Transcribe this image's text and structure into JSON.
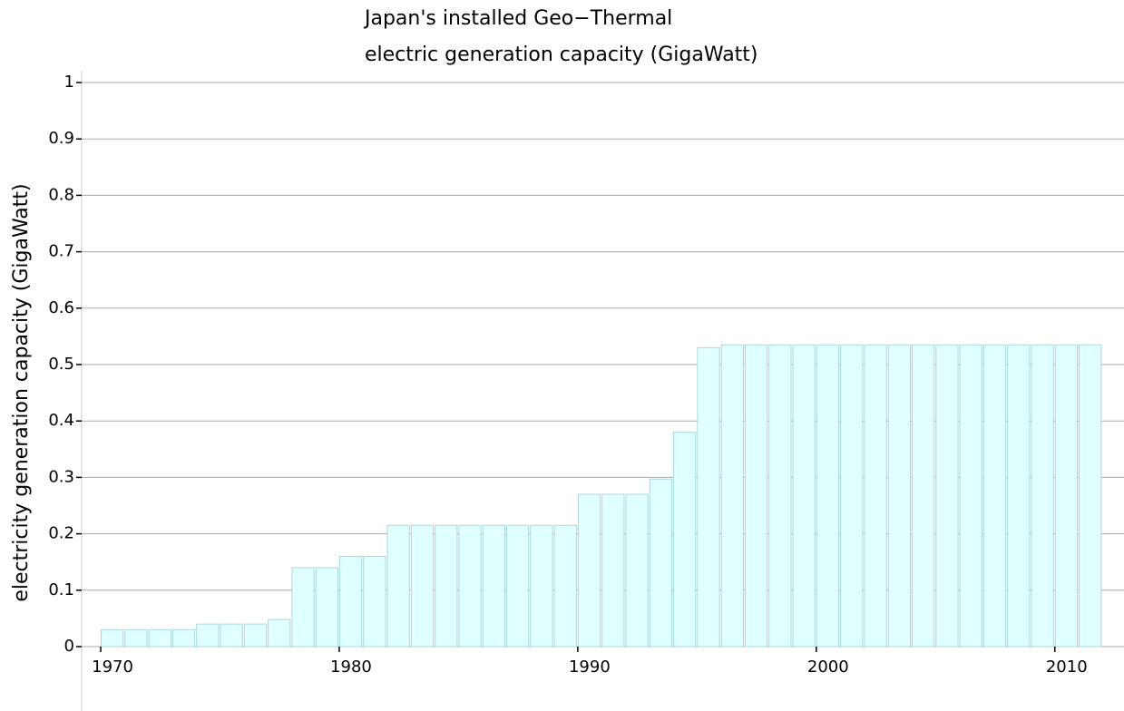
{
  "chart_data": {
    "type": "bar",
    "title": [
      "Japan's installed Geo−Thermal",
      "electric generation capacity (GigaWatt)"
    ],
    "y_label": "electricity generation capacity (GigaWatt)",
    "x": [
      1970,
      1971,
      1972,
      1973,
      1974,
      1975,
      1976,
      1977,
      1978,
      1979,
      1980,
      1981,
      1982,
      1983,
      1984,
      1985,
      1986,
      1987,
      1988,
      1989,
      1990,
      1991,
      1992,
      1993,
      1994,
      1995,
      1996,
      1997,
      1998,
      1999,
      2000,
      2001,
      2002,
      2003,
      2004,
      2005,
      2006,
      2007,
      2008,
      2009,
      2010,
      2011
    ],
    "values": [
      0.03,
      0.03,
      0.03,
      0.03,
      0.04,
      0.04,
      0.04,
      0.048,
      0.14,
      0.14,
      0.16,
      0.16,
      0.215,
      0.215,
      0.215,
      0.215,
      0.215,
      0.215,
      0.215,
      0.215,
      0.27,
      0.27,
      0.27,
      0.297,
      0.38,
      0.53,
      0.535,
      0.535,
      0.535,
      0.535,
      0.535,
      0.535,
      0.535,
      0.535,
      0.535,
      0.535,
      0.535,
      0.535,
      0.535,
      0.535,
      0.535,
      0.535
    ],
    "color": "#e0ffff",
    "edge_color": "#a9d9d9",
    "xlim": [
      1969.2,
      2012.9
    ],
    "xticks": [
      1970,
      1980,
      1990,
      2000,
      2010
    ],
    "ylim": [
      0,
      1
    ],
    "yticks": [
      0,
      0.1,
      0.2,
      0.3,
      0.4,
      0.5,
      0.6,
      0.7,
      0.8,
      0.9,
      1
    ],
    "grid": true
  }
}
